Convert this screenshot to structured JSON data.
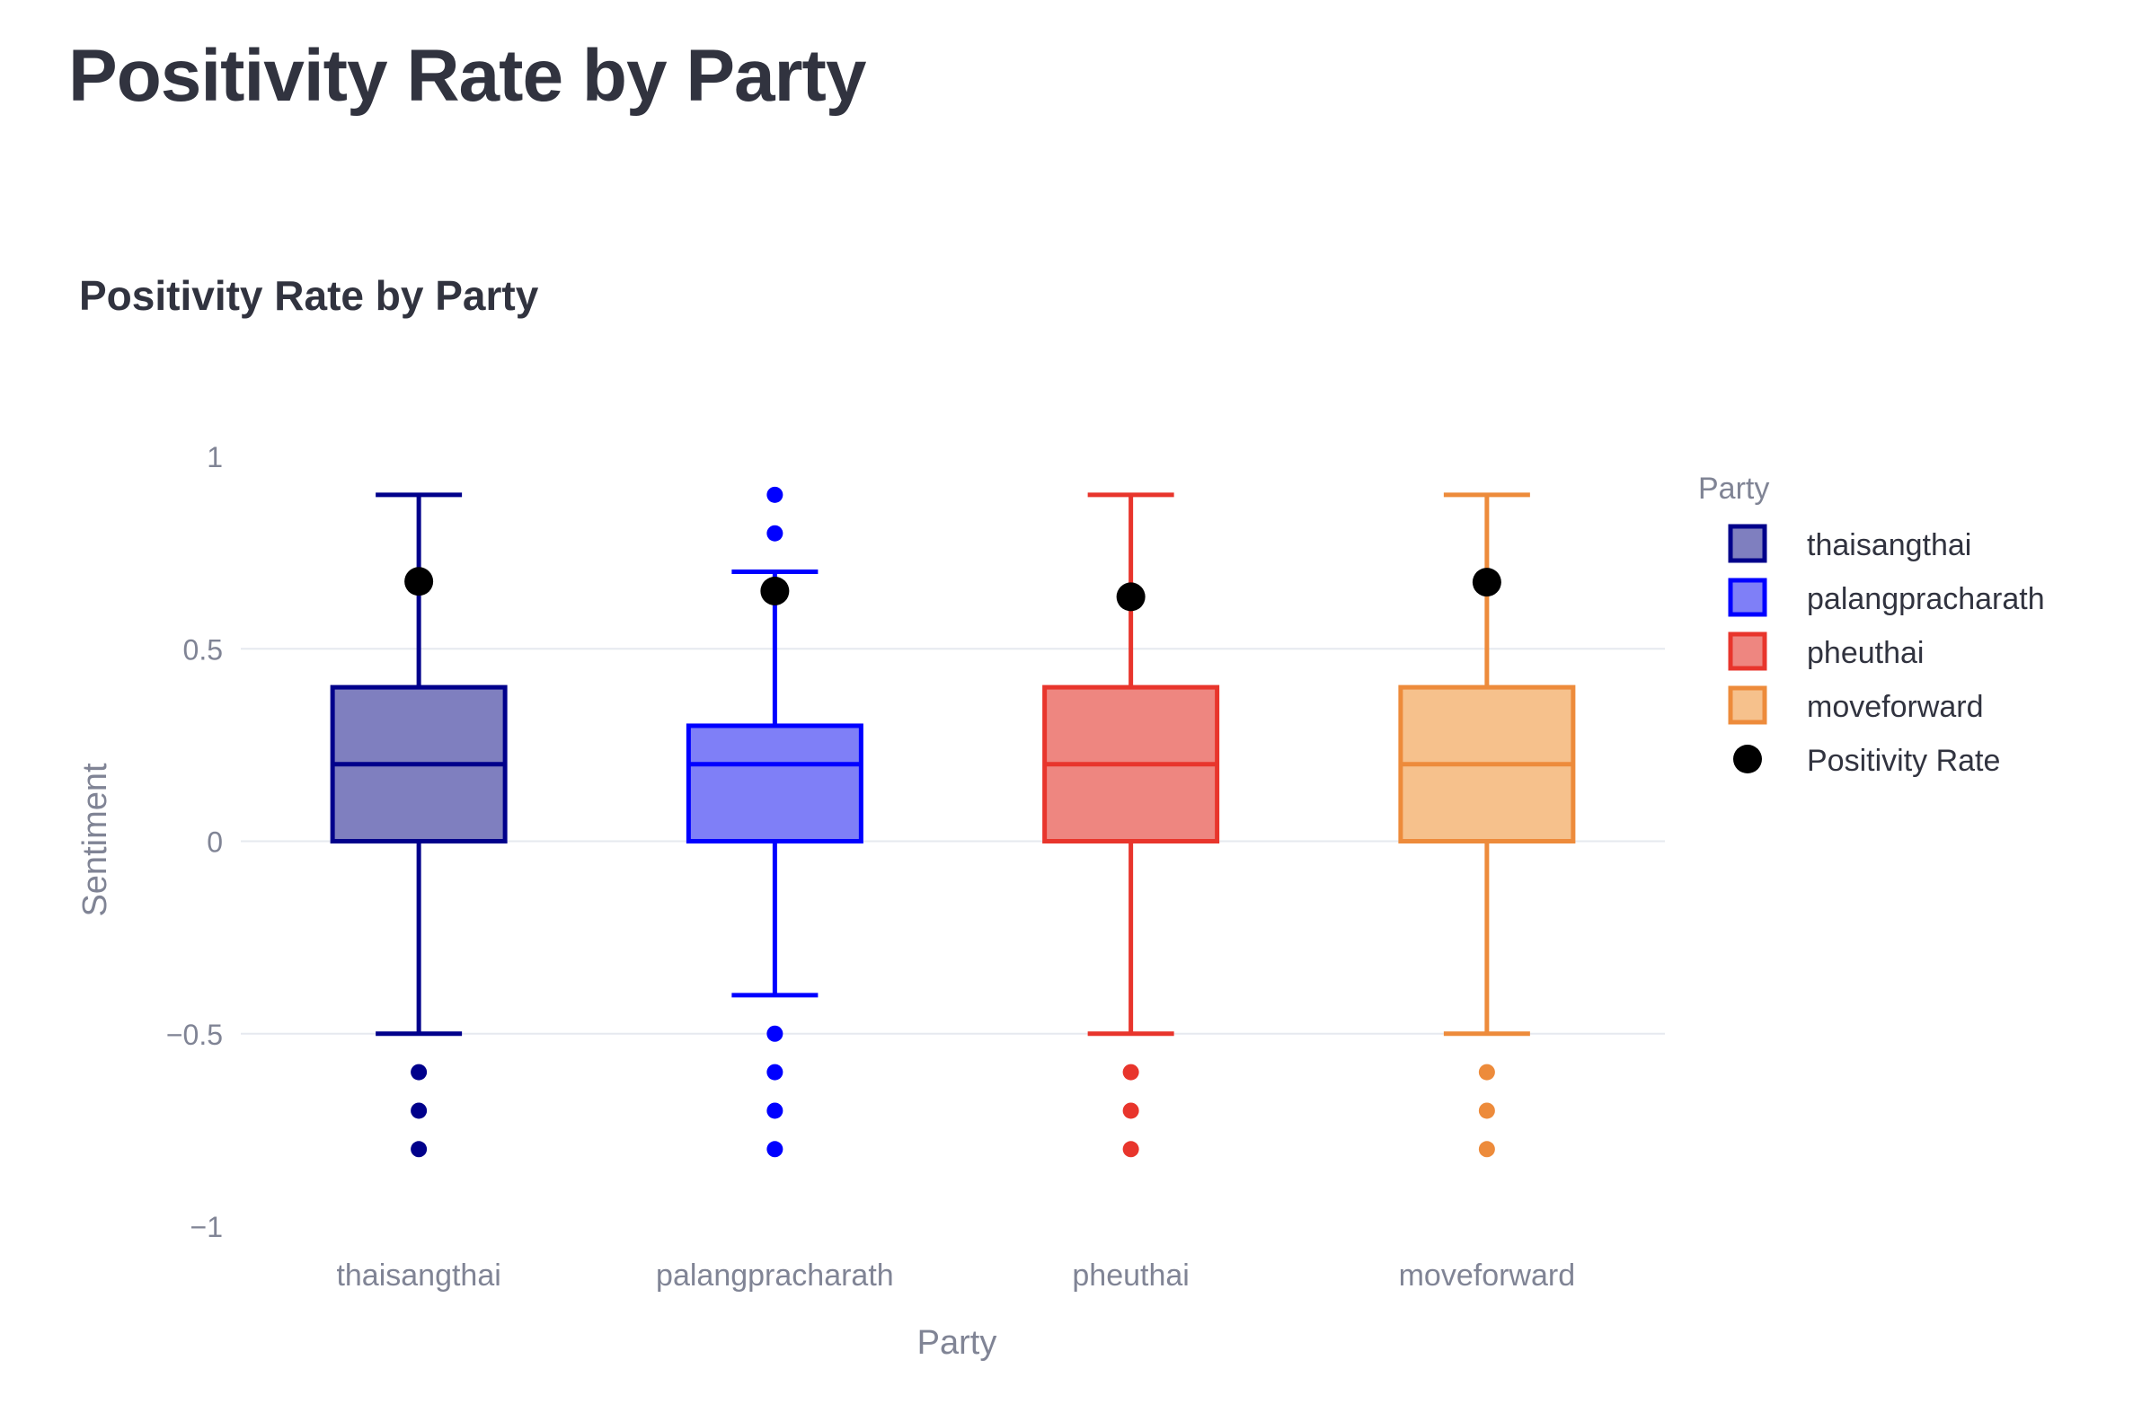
{
  "page": {
    "title": "Positivity Rate by Party"
  },
  "chart_data": {
    "type": "box",
    "title": "Positivity Rate by Party",
    "xlabel": "Party",
    "ylabel": "Sentiment",
    "ylim": [
      -1,
      1
    ],
    "y_ticks": [
      1,
      0.5,
      0,
      -0.5,
      -1
    ],
    "y_tick_labels": [
      "1",
      "0.5",
      "0",
      "−0.5",
      "−1"
    ],
    "grid": true,
    "legend_title": "Party",
    "legend_position": "right",
    "categories": [
      "thaisangthai",
      "palangpracharath",
      "pheuthai",
      "moveforward"
    ],
    "series": [
      {
        "name": "thaisangthai",
        "color": "#00008b",
        "fill": "#7f7fbf",
        "lower_fence": -0.5,
        "q1": 0,
        "median": 0.2,
        "q3": 0.4,
        "upper_fence": 0.9,
        "outliers": [
          -0.6,
          -0.7,
          -0.8
        ]
      },
      {
        "name": "palangpracharath",
        "color": "#0000ff",
        "fill": "#7f7ff7",
        "lower_fence": -0.4,
        "q1": 0,
        "median": 0.2,
        "q3": 0.3,
        "upper_fence": 0.7,
        "outliers": [
          0.9,
          0.8,
          -0.5,
          -0.6,
          -0.7,
          -0.8
        ]
      },
      {
        "name": "pheuthai",
        "color": "#e8352c",
        "fill": "#ee8680",
        "lower_fence": -0.5,
        "q1": 0,
        "median": 0.2,
        "q3": 0.4,
        "upper_fence": 0.9,
        "outliers": [
          -0.6,
          -0.7,
          -0.8
        ]
      },
      {
        "name": "moveforward",
        "color": "#ed8b3b",
        "fill": "#f6c18c",
        "lower_fence": -0.5,
        "q1": 0,
        "median": 0.2,
        "q3": 0.4,
        "upper_fence": 0.9,
        "outliers": [
          -0.6,
          -0.7,
          -0.8
        ]
      }
    ],
    "positivity_rate": {
      "name": "Positivity Rate",
      "color": "#000000",
      "values": [
        0.675,
        0.65,
        0.635,
        0.673
      ]
    }
  }
}
